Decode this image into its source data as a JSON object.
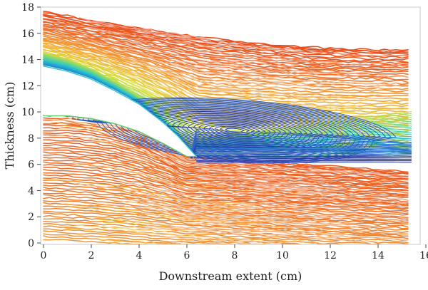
{
  "chart_data": {
    "type": "streamline",
    "title": "",
    "xlabel": "Downstream extent (cm)",
    "ylabel": "Thickness (cm)",
    "xlim": [
      0,
      16
    ],
    "ylim": [
      0,
      18
    ],
    "x_ticks": [
      "0",
      "2",
      "4",
      "6",
      "8",
      "10",
      "12",
      "14",
      "16"
    ],
    "y_ticks": [
      "0",
      "2",
      "4",
      "6",
      "8",
      "10",
      "12",
      "14",
      "16",
      "18"
    ],
    "grid": false,
    "legend": "none",
    "colormap": [
      "#2b3fa8",
      "#1f8fd6",
      "#2fc7c4",
      "#7dd67a",
      "#d8df3a",
      "#f4b13a",
      "#ee6e2a",
      "#e84a1c"
    ],
    "upper_body_surface": [
      [
        0,
        13.5
      ],
      [
        1,
        13.1
      ],
      [
        2,
        12.5
      ],
      [
        3,
        11.6
      ],
      [
        4,
        10.6
      ],
      [
        5,
        9.2
      ],
      [
        5.6,
        8.2
      ],
      [
        6,
        7.4
      ],
      [
        6.4,
        6.6
      ]
    ],
    "lower_body_surface": [
      [
        0,
        9.7
      ],
      [
        1,
        9.7
      ],
      [
        2,
        9.5
      ],
      [
        3,
        9.1
      ],
      [
        4,
        8.5
      ],
      [
        5,
        7.6
      ],
      [
        5.6,
        7.0
      ],
      [
        6,
        6.6
      ],
      [
        6.4,
        6.6
      ]
    ],
    "vortex_center": [
      8,
      8.6
    ],
    "outer_flow_range_y": [
      0.3,
      17.8
    ],
    "domain_end_x": 15.4
  }
}
